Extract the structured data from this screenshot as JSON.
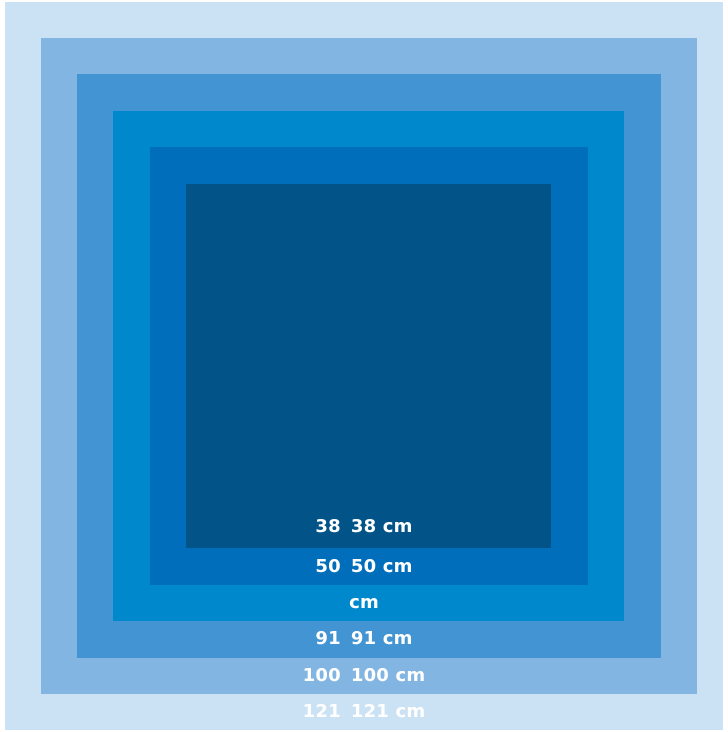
{
  "squares": [
    {
      "number": "121",
      "text": "121 cm",
      "color": "#cbe1f4"
    },
    {
      "number": "100",
      "text": "100 cm",
      "color": "#82b5e2"
    },
    {
      "number": "91",
      "text": "91 cm",
      "color": "#4394d2"
    },
    {
      "number": "",
      "text": "cm",
      "color": "#0088cc"
    },
    {
      "number": "50",
      "text": "50 cm",
      "color": "#006eba"
    },
    {
      "number": "38",
      "text": "38 cm",
      "color": "#025488"
    }
  ]
}
